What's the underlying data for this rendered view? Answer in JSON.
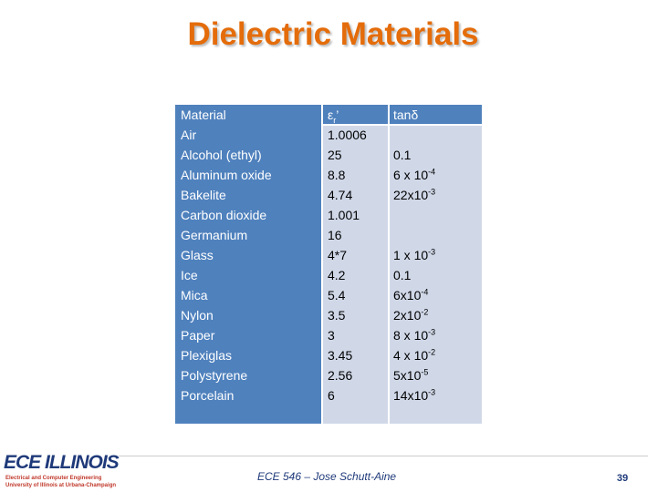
{
  "title": "Dielectric  Materials",
  "table": {
    "rows": [
      [
        "Material",
        {
          "base": "ε",
          "sub": "r",
          "after": "’"
        },
        "tanδ"
      ],
      [
        "Air",
        "1.0006",
        null
      ],
      [
        "Alcohol (ethyl)",
        "25",
        "0.1"
      ],
      [
        "Aluminum oxide",
        "8.8",
        {
          "base": "6 x 10",
          "exp": "-4"
        }
      ],
      [
        "Bakelite",
        "4.74",
        {
          "base": "22x10",
          "exp": "-3"
        }
      ],
      [
        "Carbon dioxide",
        "1.001",
        null
      ],
      [
        "Germanium",
        "16",
        null
      ],
      [
        "Glass",
        "4*7",
        {
          "base": "1 x 10",
          "exp": "-3"
        }
      ],
      [
        "Ice",
        "4.2",
        "0.1"
      ],
      [
        "Mica",
        "5.4",
        {
          "base": "6x10",
          "exp": "-4"
        }
      ],
      [
        "Nylon",
        "3.5",
        {
          "base": "2x10",
          "exp": "-2"
        }
      ],
      [
        "Paper",
        "3",
        {
          "base": "8 x 10",
          "exp": "-3"
        }
      ],
      [
        "Plexiglas",
        "3.45",
        {
          "base": "4 x 10",
          "exp": "-2"
        }
      ],
      [
        "Polystyrene",
        "2.56",
        {
          "base": "5x10",
          "exp": "-5"
        }
      ],
      [
        "Porcelain",
        "6",
        {
          "base": "14x10",
          "exp": "-3"
        }
      ]
    ]
  },
  "footer": {
    "logo": "ECE ILLINOIS",
    "logo_line1": "Electrical and Computer Engineering",
    "logo_line2": "University of Illinois at Urbana-Champaign",
    "course": "ECE 546 – Jose Schutt-Aine",
    "page": "39"
  }
}
